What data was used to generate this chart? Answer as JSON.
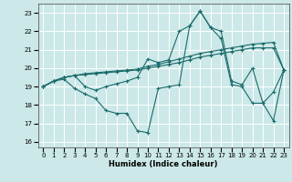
{
  "xlabel": "Humidex (Indice chaleur)",
  "xlim": [
    -0.5,
    23.5
  ],
  "ylim": [
    15.7,
    23.5
  ],
  "yticks": [
    16,
    17,
    18,
    19,
    20,
    21,
    22,
    23
  ],
  "xticks": [
    0,
    1,
    2,
    3,
    4,
    5,
    6,
    7,
    8,
    9,
    10,
    11,
    12,
    13,
    14,
    15,
    16,
    17,
    18,
    19,
    20,
    21,
    22,
    23
  ],
  "bg_color": "#cce8e8",
  "grid_color": "#ffffff",
  "line_color": "#1a6b6b",
  "lines": [
    {
      "x": [
        0,
        1,
        2,
        3,
        4,
        5,
        6,
        7,
        8,
        9,
        10,
        11,
        12,
        13,
        14,
        15,
        16,
        17,
        18,
        19,
        20,
        21,
        22,
        23
      ],
      "y": [
        19.0,
        19.3,
        19.5,
        19.6,
        19.7,
        19.75,
        19.8,
        19.85,
        19.9,
        19.95,
        20.1,
        20.2,
        20.35,
        20.5,
        20.65,
        20.8,
        20.9,
        21.0,
        21.1,
        21.2,
        21.3,
        21.35,
        21.4,
        19.9
      ]
    },
    {
      "x": [
        0,
        1,
        2,
        3,
        4,
        5,
        6,
        7,
        8,
        9,
        10,
        11,
        12,
        13,
        14,
        15,
        16,
        17,
        18,
        19,
        20,
        21,
        22,
        23
      ],
      "y": [
        19.0,
        19.3,
        19.5,
        19.6,
        19.65,
        19.7,
        19.75,
        19.8,
        19.85,
        19.9,
        20.0,
        20.1,
        20.2,
        20.3,
        20.45,
        20.6,
        20.7,
        20.8,
        20.9,
        21.0,
        21.1,
        21.1,
        21.1,
        19.9
      ]
    },
    {
      "x": [
        0,
        1,
        2,
        3,
        4,
        5,
        6,
        7,
        8,
        9,
        10,
        11,
        12,
        13,
        14,
        15,
        16,
        17,
        18,
        19,
        20,
        21,
        22,
        23
      ],
      "y": [
        19.0,
        19.3,
        19.5,
        19.6,
        19.0,
        18.8,
        19.0,
        19.15,
        19.3,
        19.5,
        20.5,
        20.3,
        20.45,
        22.0,
        22.3,
        23.1,
        22.2,
        22.0,
        19.3,
        19.1,
        20.0,
        18.1,
        18.7,
        19.9
      ]
    },
    {
      "x": [
        0,
        1,
        2,
        3,
        4,
        5,
        6,
        7,
        8,
        9,
        10,
        11,
        12,
        13,
        14,
        15,
        16,
        17,
        18,
        19,
        20,
        21,
        22,
        23
      ],
      "y": [
        19.0,
        19.3,
        19.4,
        18.9,
        18.6,
        18.35,
        17.7,
        17.55,
        17.55,
        16.6,
        16.5,
        18.9,
        19.0,
        19.1,
        22.3,
        23.1,
        22.2,
        21.6,
        19.1,
        19.0,
        18.1,
        18.1,
        17.15,
        19.9
      ]
    }
  ]
}
